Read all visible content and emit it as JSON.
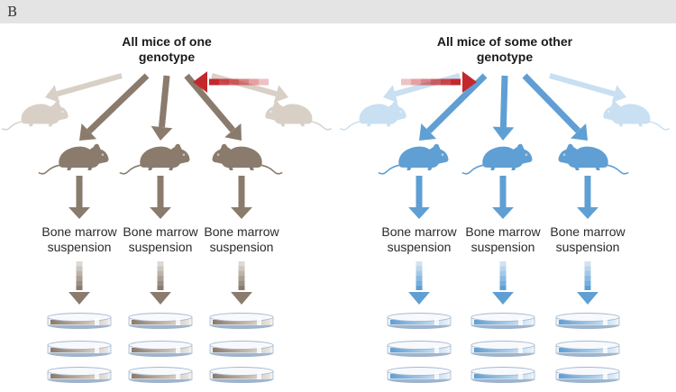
{
  "panel_label": "B",
  "groups": [
    {
      "title_lines": [
        "All mice of one",
        "genotype"
      ],
      "color": "#8a7b6c",
      "faded_color": "#d8d0c6",
      "label_lines": [
        "Bone marrow",
        "suspension"
      ]
    },
    {
      "title_lines": [
        "All mice of some other",
        "genotype"
      ],
      "color": "#5f9fd3",
      "faded_color": "#c9dff2",
      "label_lines": [
        "Bone marrow",
        "suspension"
      ]
    }
  ],
  "colors": {
    "header_band": "#e4e4e4",
    "red_arrow": "#c4282c",
    "dish_rim": "#a6b9cf",
    "dish_glass": "#f4f7fb"
  }
}
